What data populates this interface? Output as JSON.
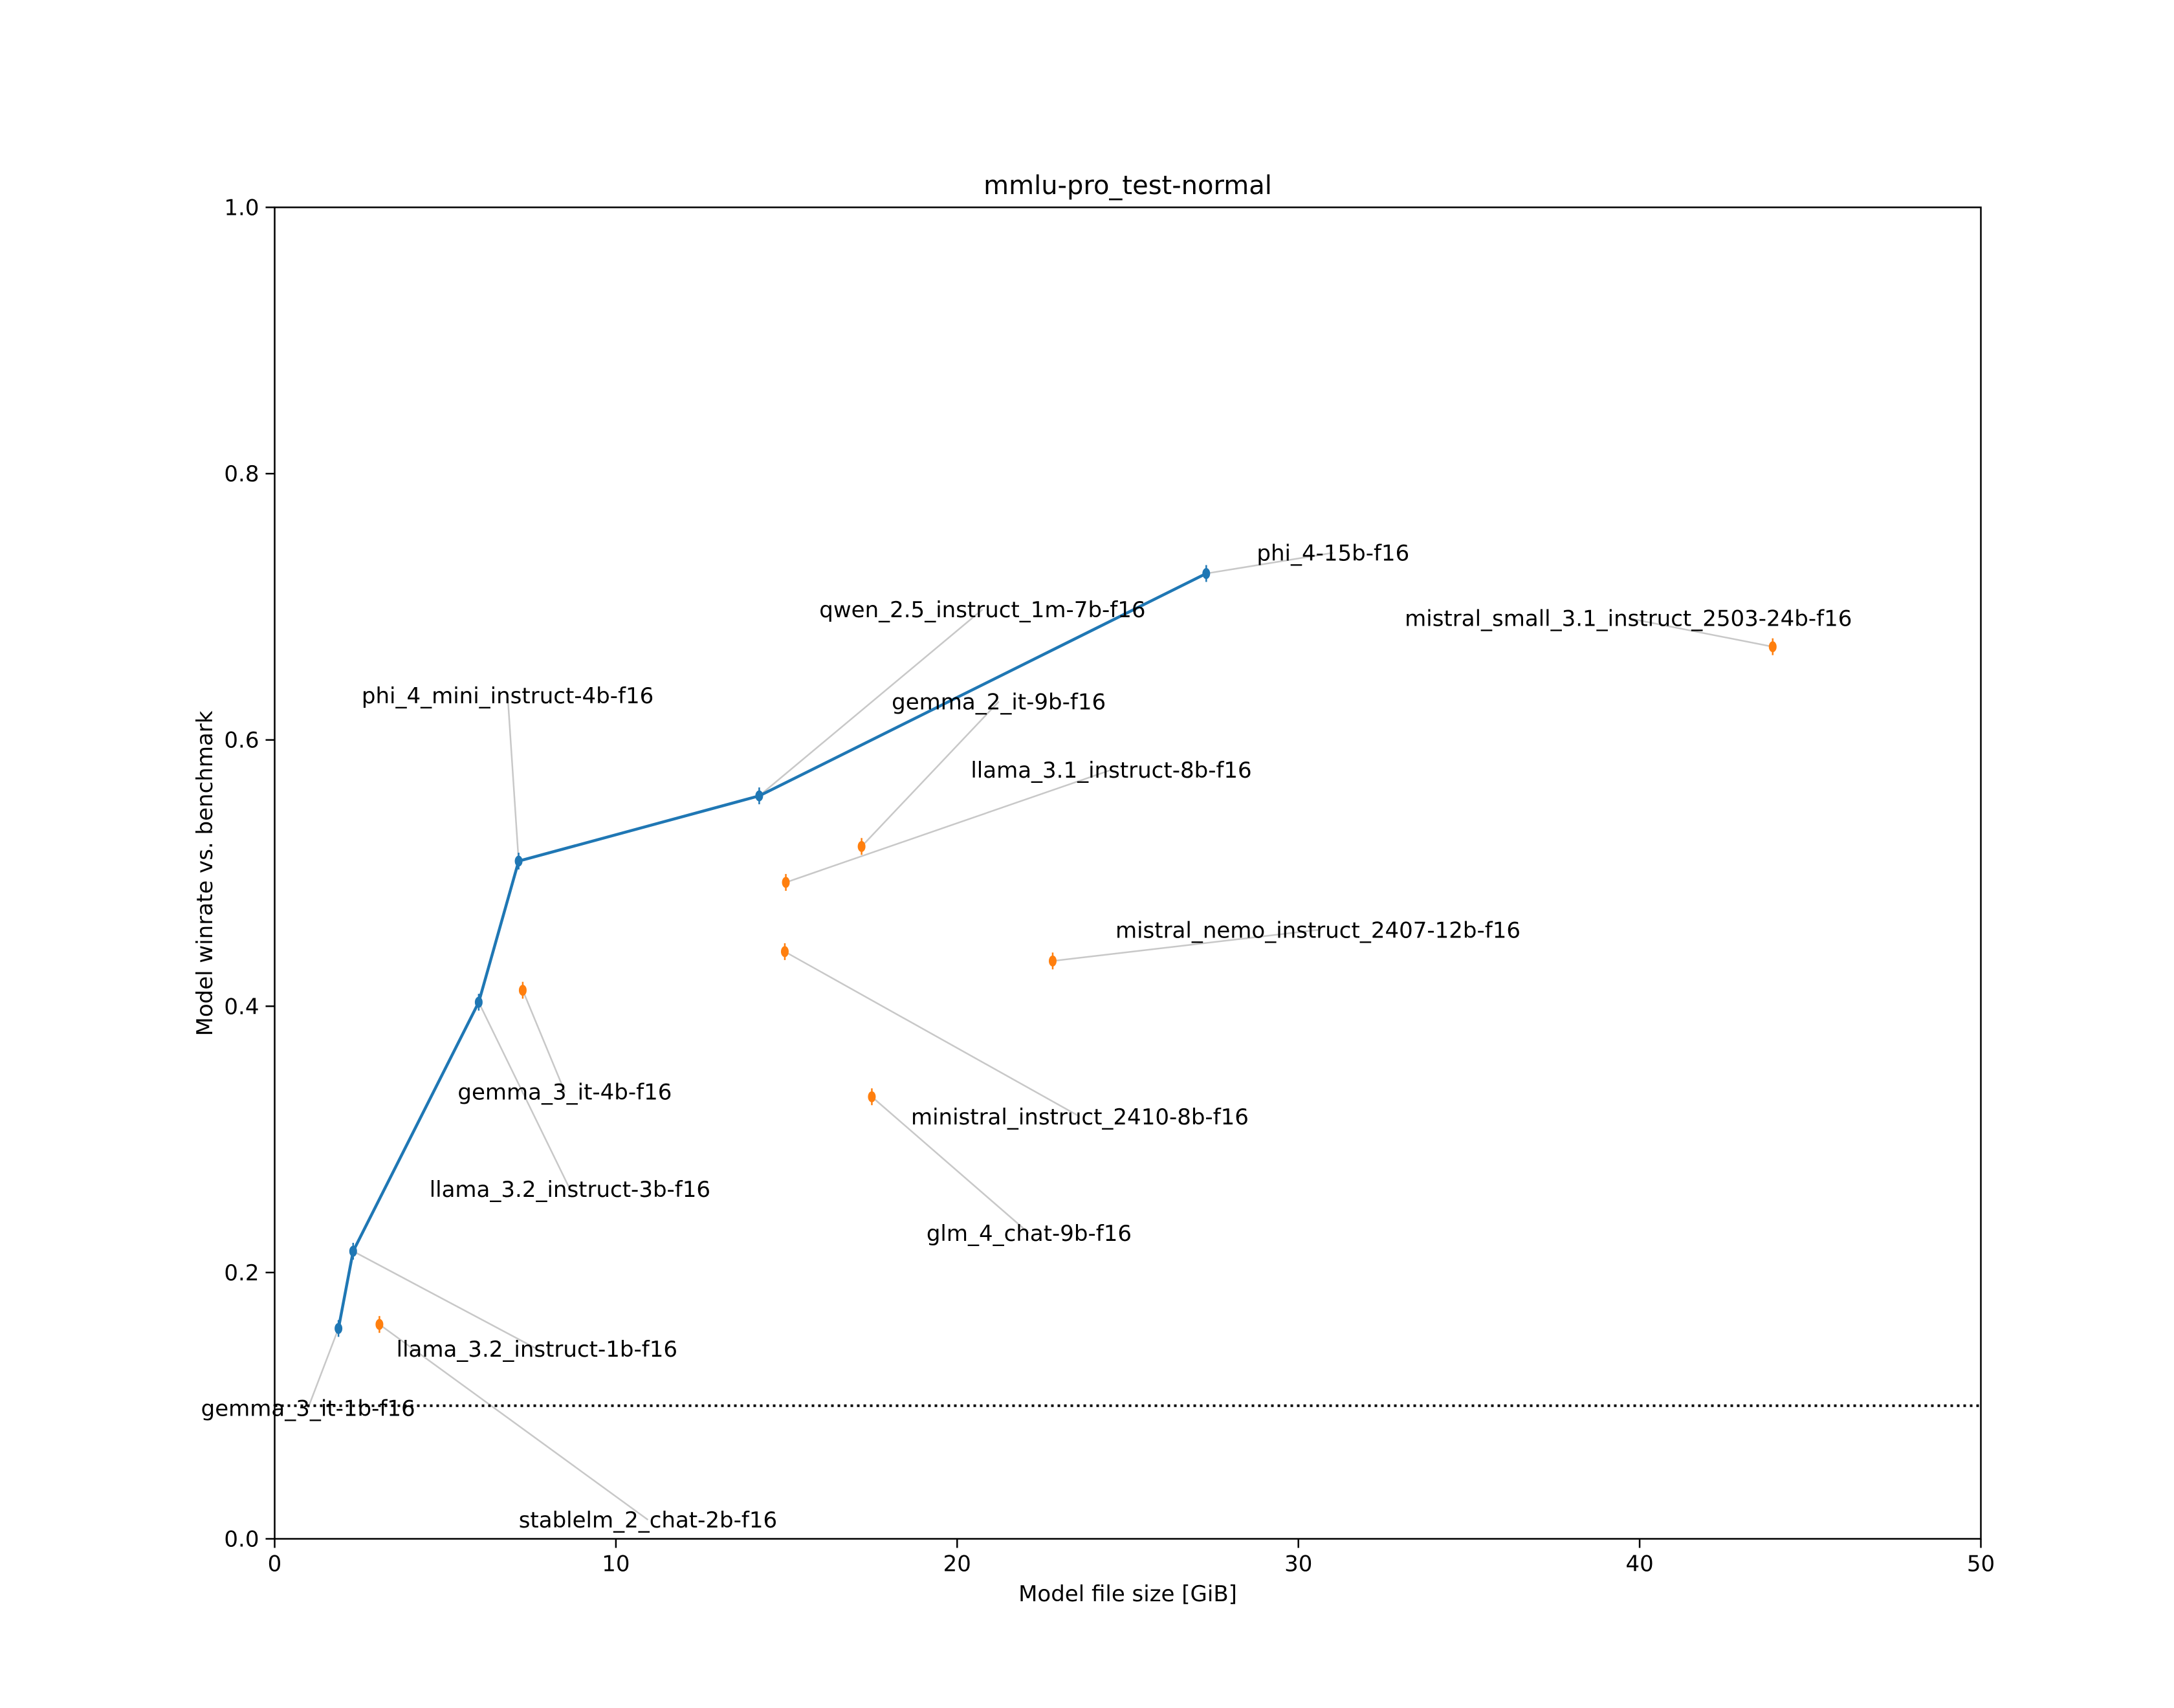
{
  "chart_data": {
    "type": "scatter",
    "title": "mmlu-pro_test-normal",
    "xlabel": "Model file size [GiB]",
    "ylabel": "Model winrate vs. benchmark",
    "xlim": [
      0,
      50
    ],
    "ylim": [
      0.0,
      1.0
    ],
    "xticks": [
      "0",
      "10",
      "20",
      "30",
      "40",
      "50"
    ],
    "yticks": [
      "0.0",
      "0.2",
      "0.4",
      "0.6",
      "0.8",
      "1.0"
    ],
    "grid": false,
    "reference_line": {
      "y": 0.1,
      "style": "dotted",
      "color": "#000000"
    },
    "colors": {
      "frontier": "#1f77b4",
      "other": "#ff7f0e",
      "leader": "#c8c8c8"
    },
    "frontier_line": [
      {
        "x": 1.87,
        "y": 0.158
      },
      {
        "x": 2.3,
        "y": 0.216
      },
      {
        "x": 5.98,
        "y": 0.403
      },
      {
        "x": 7.15,
        "y": 0.509
      },
      {
        "x": 14.2,
        "y": 0.558
      },
      {
        "x": 27.3,
        "y": 0.725
      }
    ],
    "points": [
      {
        "name": "gemma_3_it-1b-f16",
        "x": 1.87,
        "y": 0.158,
        "group": "frontier"
      },
      {
        "name": "llama_3.2_instruct-1b-f16",
        "x": 2.3,
        "y": 0.216,
        "group": "frontier"
      },
      {
        "name": "llama_3.2_instruct-3b-f16",
        "x": 5.98,
        "y": 0.403,
        "group": "frontier"
      },
      {
        "name": "phi_4_mini_instruct-4b-f16",
        "x": 7.15,
        "y": 0.509,
        "group": "frontier"
      },
      {
        "name": "qwen_2.5_instruct_1m-7b-f16",
        "x": 14.2,
        "y": 0.558,
        "group": "frontier"
      },
      {
        "name": "phi_4-15b-f16",
        "x": 27.3,
        "y": 0.725,
        "group": "frontier"
      },
      {
        "name": "stablelm_2_chat-2b-f16",
        "x": 3.07,
        "y": 0.161,
        "group": "other"
      },
      {
        "name": "gemma_3_it-4b-f16",
        "x": 7.27,
        "y": 0.412,
        "group": "other"
      },
      {
        "name": "ministral_instruct_2410-8b-f16",
        "x": 14.95,
        "y": 0.441,
        "group": "other"
      },
      {
        "name": "llama_3.1_instruct-8b-f16",
        "x": 14.98,
        "y": 0.493,
        "group": "other"
      },
      {
        "name": "gemma_2_it-9b-f16",
        "x": 17.2,
        "y": 0.52,
        "group": "other"
      },
      {
        "name": "glm_4_chat-9b-f16",
        "x": 17.5,
        "y": 0.332,
        "group": "other"
      },
      {
        "name": "mistral_nemo_instruct_2407-12b-f16",
        "x": 22.8,
        "y": 0.434,
        "group": "other"
      },
      {
        "name": "mistral_small_3.1_instruct_2503-24b-f16",
        "x": 43.9,
        "y": 0.67,
        "group": "other"
      }
    ]
  }
}
